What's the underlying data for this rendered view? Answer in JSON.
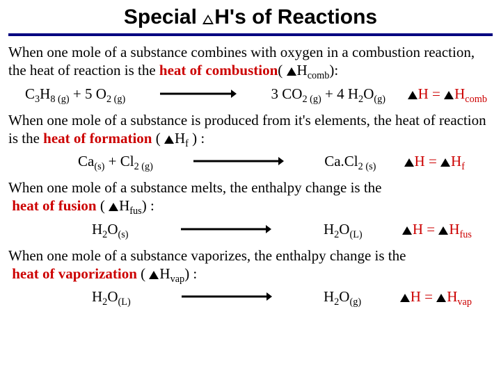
{
  "title": {
    "pre": "Special ",
    "post": "H's of Reactions"
  },
  "sections": [
    {
      "para_pre": "When one mole of a substance combines with oxygen in a combustion reaction, the heat of reaction is the ",
      "para_bold": "heat of combustion",
      "para_post_open": "( ",
      "para_sym_sub": "comb",
      "para_post_close": "):",
      "eq": {
        "left_html": "C<sub>3</sub>H<sub>8 (g)</sub> + 5 O<sub>2 (g)</sub>",
        "mid_html": "3 CO<sub>2 (g)</sub> + 4 H<sub>2</sub>O<sub>(g)</sub>",
        "res_label": "H = ",
        "res_sub": "comb"
      },
      "arrow_len": 110
    },
    {
      "para_pre": "When one mole of a substance is produced from it's elements, the heat of reaction is the ",
      "para_bold": "heat of formation",
      "para_post_open": " ( ",
      "para_sym_sub": "f",
      "para_post_close": " ) :",
      "eq": {
        "left_html": "Ca<sub>(s)</sub> + Cl<sub>2 (g)</sub>",
        "mid_html": "Ca.Cl<sub>2 (s)</sub>",
        "res_label": "H = ",
        "res_sub": "f"
      },
      "arrow_len": 130,
      "row_class": "med"
    },
    {
      "para_pre": "When one mole of a substance melts, the enthalpy change is the ",
      "para_bold": "heat of fusion",
      "para_post_open": " ( ",
      "para_sym_sub": "fus",
      "para_post_close": ") :",
      "eq": {
        "left_html": "H<sub>2</sub>O<sub>(s)</sub>",
        "mid_html": "H<sub>2</sub>O<sub>(L)</sub>",
        "res_label": "H = ",
        "res_sub": "fus"
      },
      "arrow_len": 130,
      "row_class": "tight"
    },
    {
      "para_pre": "When one mole of a substance vaporizes, the enthalpy change is the ",
      "para_bold": "heat of vaporization",
      "para_post_open": " ( ",
      "para_sym_sub": "vap",
      "para_post_close": ") :",
      "eq": {
        "left_html": "H<sub>2</sub>O<sub>(L)</sub>",
        "mid_html": "H<sub>2</sub>O<sub>(g)</sub>",
        "res_label": "H  =  ",
        "res_sub": "vap"
      },
      "arrow_len": 130,
      "row_class": "tight"
    }
  ],
  "colors": {
    "underline": "#000080",
    "red": "#cc0000",
    "text": "#000000",
    "bg": "#ffffff"
  }
}
